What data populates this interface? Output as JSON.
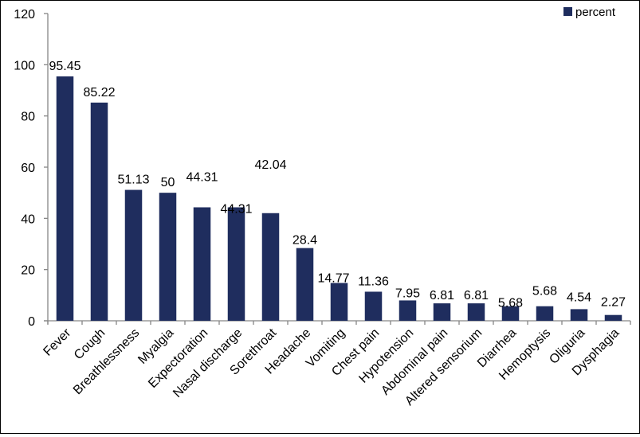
{
  "chart_data": {
    "type": "bar",
    "categories": [
      "Fever",
      "Cough",
      "Breathlessness",
      "Myalgia",
      "Expectoration",
      "Nasal discharge",
      "Sorethroat",
      "Headache",
      "Vomiting",
      "Chest pain",
      "Hypotension",
      "Abdominal pain",
      "Altered sensorium",
      "Diarrhea",
      "Hemoptysis",
      "Oliguria",
      "Dysphagia"
    ],
    "series": [
      {
        "name": "percent",
        "values": [
          95.45,
          85.22,
          51.13,
          50,
          44.31,
          44.31,
          42.04,
          28.4,
          14.77,
          11.36,
          7.95,
          6.81,
          6.81,
          5.68,
          5.68,
          4.54,
          2.27
        ]
      }
    ],
    "data_labels": [
      "95.45",
      "85.22",
      "51.13",
      "50",
      "44.31",
      "44.31",
      "42.04",
      "28.4",
      "14.77",
      "11.36",
      "7.95",
      "6.81",
      "6.81",
      "5.68",
      "5.68",
      "4.54",
      "2.27"
    ],
    "yticks": [
      0,
      20,
      40,
      60,
      80,
      100,
      120
    ],
    "ylim": [
      0,
      120
    ],
    "title": "",
    "xlabel": "",
    "ylabel": "",
    "grid": false,
    "legend": {
      "position": "top-right"
    },
    "colors": {
      "bar": "#1f2d5e"
    }
  }
}
